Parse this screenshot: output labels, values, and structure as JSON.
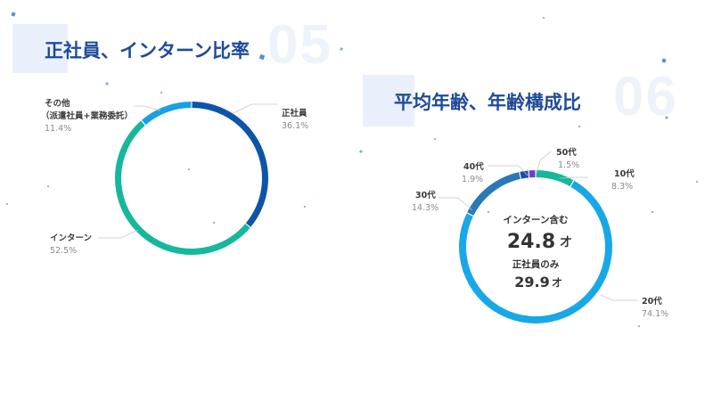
{
  "left_section": {
    "number": "05",
    "title": "正社員、インターン比率"
  },
  "right_section": {
    "number": "06",
    "title": "平均年齢、年齢構成比",
    "center": {
      "label1": "インターン含む",
      "value1": "24.8",
      "unit1": "才",
      "label2": "正社員のみ",
      "value2": "29.9",
      "unit2": "才"
    }
  },
  "colors": {
    "title": "#1f4b99",
    "dark_blue": "#0e54a8",
    "teal": "#15b89a",
    "light_blue": "#18a0e6",
    "sky_blue": "#18a8e8",
    "mid_blue": "#2a78b8",
    "navy": "#1f4aa8",
    "purple": "#6a3fd0",
    "decor_cube": "#2f7fc9"
  },
  "chart_data": [
    {
      "type": "pie",
      "title": "正社員、インターン比率",
      "slices": [
        {
          "name": "正社員",
          "value": 36.1,
          "label": "36.1%",
          "color": "#0e54a8"
        },
        {
          "name": "インターン",
          "value": 52.5,
          "label": "52.5%",
          "color": "#15b89a"
        },
        {
          "name": "その他",
          "name2": "（派遣社員+業務委託）",
          "value": 11.4,
          "label": "11.4%",
          "color": "#18a0e6"
        }
      ]
    },
    {
      "type": "pie",
      "title": "平均年齢、年齢構成比",
      "slices": [
        {
          "name": "10代",
          "value": 8.3,
          "label": "8.3%",
          "color": "#15b89a"
        },
        {
          "name": "20代",
          "value": 74.1,
          "label": "74.1%",
          "color": "#18a8e8"
        },
        {
          "name": "30代",
          "value": 14.3,
          "label": "14.3%",
          "color": "#2a78b8"
        },
        {
          "name": "40代",
          "value": 1.9,
          "label": "1.9%",
          "color": "#1f4aa8"
        },
        {
          "name": "50代",
          "value": 1.5,
          "label": "1.5%",
          "color": "#6a3fd0"
        }
      ]
    }
  ]
}
